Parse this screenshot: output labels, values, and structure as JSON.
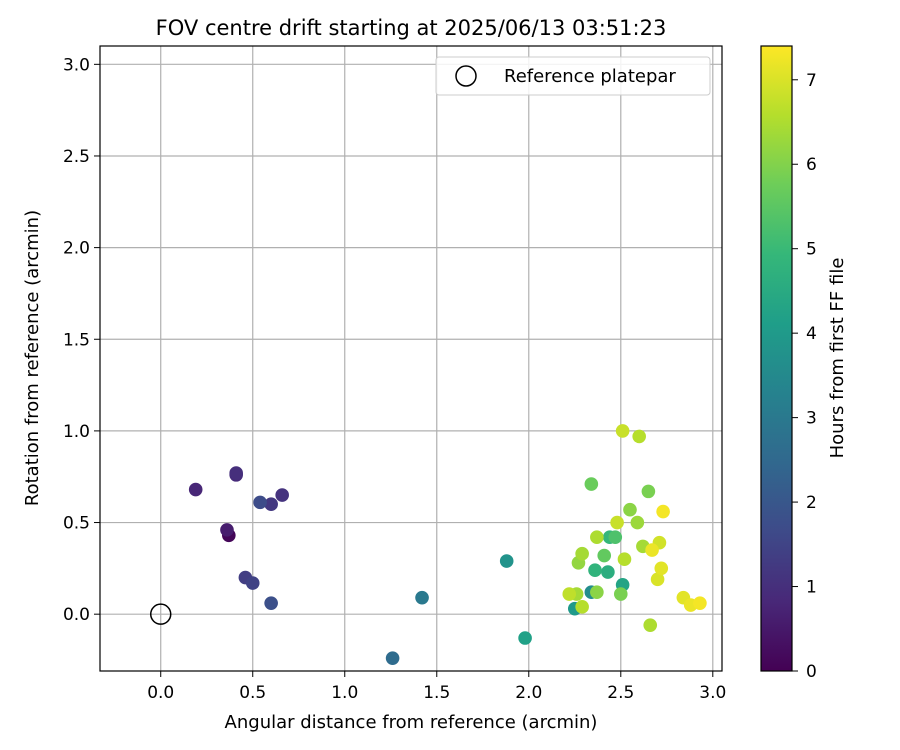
{
  "chart_data": {
    "type": "scatter",
    "title": "FOV centre drift starting at 2025/06/13 03:51:23",
    "xlabel": "Angular distance from reference (arcmin)",
    "ylabel": "Rotation from reference (arcmin)",
    "xlim": [
      -0.33,
      3.05
    ],
    "ylim": [
      -0.31,
      3.1
    ],
    "xticks": [
      "0.0",
      "0.5",
      "1.0",
      "1.5",
      "2.0",
      "2.5",
      "3.0"
    ],
    "yticks": [
      "0.0",
      "0.5",
      "1.0",
      "1.5",
      "2.0",
      "2.5",
      "3.0"
    ],
    "grid": true,
    "legend": {
      "placement": "top-right",
      "entries": [
        "Reference platepar"
      ]
    },
    "reference_point": {
      "x": 0.0,
      "y": 0.0
    },
    "colorbar": {
      "label": "Hours from first FF file",
      "range": [
        0,
        7.4
      ],
      "ticks": [
        "0",
        "1",
        "2",
        "3",
        "4",
        "5",
        "6",
        "7"
      ],
      "colormap": "viridis"
    },
    "series": [
      {
        "points": [
          {
            "x": 0.37,
            "y": 0.43,
            "c": 0.1
          },
          {
            "x": 0.36,
            "y": 0.46,
            "c": 0.6
          },
          {
            "x": 0.19,
            "y": 0.68,
            "c": 0.8
          },
          {
            "x": 0.41,
            "y": 0.76,
            "c": 0.9
          },
          {
            "x": 0.41,
            "y": 0.77,
            "c": 1.0
          },
          {
            "x": 0.66,
            "y": 0.65,
            "c": 1.1
          },
          {
            "x": 0.6,
            "y": 0.6,
            "c": 1.2
          },
          {
            "x": 0.46,
            "y": 0.2,
            "c": 1.35
          },
          {
            "x": 0.5,
            "y": 0.17,
            "c": 1.45
          },
          {
            "x": 0.54,
            "y": 0.61,
            "c": 1.7
          },
          {
            "x": 0.6,
            "y": 0.06,
            "c": 1.8
          },
          {
            "x": 1.26,
            "y": -0.24,
            "c": 2.6
          },
          {
            "x": 1.42,
            "y": 0.09,
            "c": 3.0
          },
          {
            "x": 1.88,
            "y": 0.29,
            "c": 3.8
          },
          {
            "x": 1.98,
            "y": -0.13,
            "c": 4.2
          },
          {
            "x": 2.25,
            "y": 0.03,
            "c": 4.0
          },
          {
            "x": 2.34,
            "y": 0.12,
            "c": 3.6
          },
          {
            "x": 2.51,
            "y": 0.16,
            "c": 4.3
          },
          {
            "x": 2.43,
            "y": 0.23,
            "c": 4.6
          },
          {
            "x": 2.36,
            "y": 0.24,
            "c": 4.8
          },
          {
            "x": 2.44,
            "y": 0.42,
            "c": 4.9
          },
          {
            "x": 2.47,
            "y": 0.42,
            "c": 5.3
          },
          {
            "x": 2.41,
            "y": 0.32,
            "c": 5.6
          },
          {
            "x": 2.34,
            "y": 0.71,
            "c": 5.7
          },
          {
            "x": 2.5,
            "y": 0.11,
            "c": 5.9
          },
          {
            "x": 2.65,
            "y": 0.67,
            "c": 5.9
          },
          {
            "x": 2.37,
            "y": 0.12,
            "c": 6.1
          },
          {
            "x": 2.26,
            "y": 0.11,
            "c": 6.4
          },
          {
            "x": 2.27,
            "y": 0.28,
            "c": 6.2
          },
          {
            "x": 2.29,
            "y": 0.33,
            "c": 6.4
          },
          {
            "x": 2.37,
            "y": 0.42,
            "c": 6.5
          },
          {
            "x": 2.29,
            "y": 0.04,
            "c": 6.6
          },
          {
            "x": 2.22,
            "y": 0.11,
            "c": 6.7
          },
          {
            "x": 2.55,
            "y": 0.57,
            "c": 6.1
          },
          {
            "x": 2.59,
            "y": 0.5,
            "c": 6.3
          },
          {
            "x": 2.62,
            "y": 0.37,
            "c": 6.4
          },
          {
            "x": 2.52,
            "y": 0.3,
            "c": 6.6
          },
          {
            "x": 2.48,
            "y": 0.5,
            "c": 6.8
          },
          {
            "x": 2.51,
            "y": 1.0,
            "c": 6.8
          },
          {
            "x": 2.6,
            "y": 0.97,
            "c": 6.6
          },
          {
            "x": 2.66,
            "y": -0.06,
            "c": 6.5
          },
          {
            "x": 2.71,
            "y": 0.39,
            "c": 6.9
          },
          {
            "x": 2.67,
            "y": 0.35,
            "c": 7.2
          },
          {
            "x": 2.7,
            "y": 0.19,
            "c": 7.0
          },
          {
            "x": 2.72,
            "y": 0.25,
            "c": 7.1
          },
          {
            "x": 2.73,
            "y": 0.56,
            "c": 7.3
          },
          {
            "x": 2.84,
            "y": 0.09,
            "c": 7.1
          },
          {
            "x": 2.88,
            "y": 0.05,
            "c": 7.2
          },
          {
            "x": 2.93,
            "y": 0.06,
            "c": 7.3
          }
        ]
      }
    ]
  }
}
